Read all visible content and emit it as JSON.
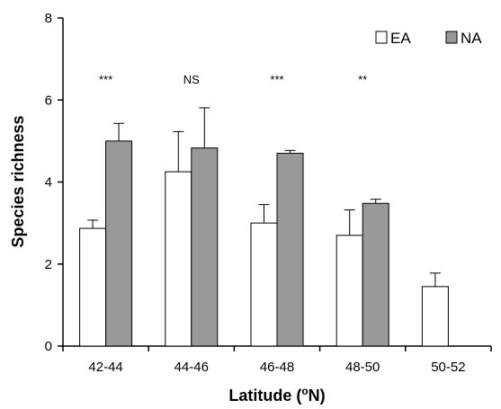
{
  "chart_data": {
    "type": "bar",
    "xlabel": "Latitude (",
    "xlabel_sup": "o",
    "xlabel_suffix": "N)",
    "ylabel": "Species richness",
    "ylim": [
      0,
      8
    ],
    "yticks": [
      "0",
      "2",
      "4",
      "6",
      "8"
    ],
    "grid": false,
    "legend_position": "top-right",
    "categories": [
      "42-44",
      "44-46",
      "46-48",
      "48-50",
      "50-52"
    ],
    "significance": [
      "***",
      "NS",
      "***",
      "**",
      ""
    ],
    "series": [
      {
        "name": "EA",
        "color": "#ffffff",
        "values": [
          2.87,
          4.25,
          3.0,
          2.7,
          1.45
        ],
        "errors": [
          0.2,
          0.98,
          0.45,
          0.62,
          0.33
        ]
      },
      {
        "name": "NA",
        "color": "#999999",
        "values": [
          5.0,
          4.83,
          4.7,
          3.48,
          null
        ],
        "errors": [
          0.43,
          0.98,
          0.07,
          0.1,
          null
        ]
      }
    ]
  }
}
